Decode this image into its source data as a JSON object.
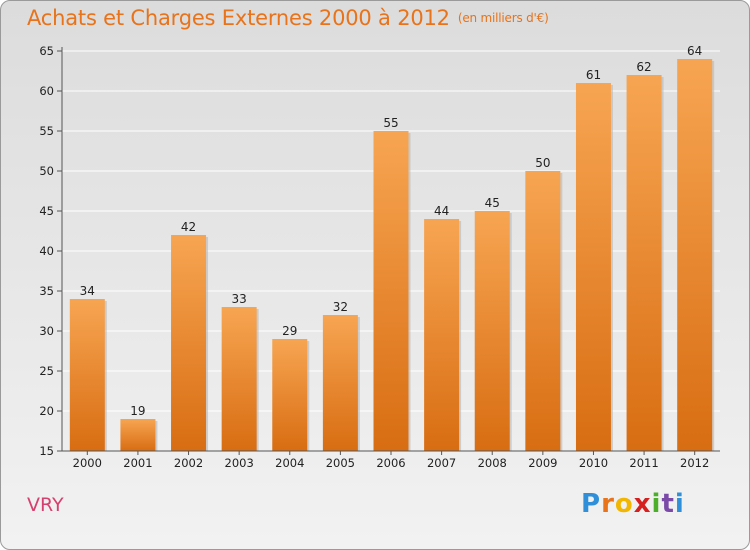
{
  "chart_data": {
    "type": "bar",
    "title": "Achats et Charges Externes 2000 à 2012",
    "subtitle": "(en milliers d'€)",
    "categories": [
      "2000",
      "2001",
      "2002",
      "2003",
      "2004",
      "2005",
      "2006",
      "2007",
      "2008",
      "2009",
      "2010",
      "2011",
      "2012"
    ],
    "values": [
      34,
      19,
      42,
      33,
      29,
      32,
      55,
      44,
      45,
      50,
      61,
      62,
      64
    ],
    "ylim": [
      15,
      65
    ],
    "yticks": [
      15,
      20,
      25,
      30,
      35,
      40,
      45,
      50,
      55,
      60,
      65
    ],
    "grid": true,
    "colors": {
      "bar_top": "#f7a552",
      "bar_bottom": "#d86d12",
      "grid": "#ffffff"
    }
  },
  "commune": "VRY",
  "logo": {
    "letters": [
      "P",
      "r",
      "o",
      "x",
      "i",
      "t",
      "i"
    ],
    "colors": [
      "#2f8fd8",
      "#e8731a",
      "#f2b500",
      "#d62020",
      "#4caf2a",
      "#7b4aa8",
      "#2f8fd8"
    ]
  }
}
